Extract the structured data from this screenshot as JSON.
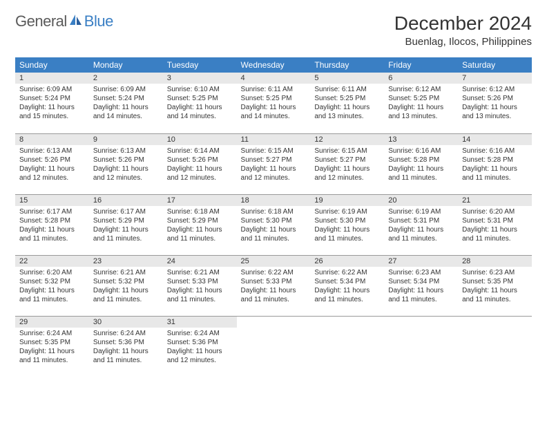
{
  "logo": {
    "general": "General",
    "blue": "Blue"
  },
  "title": "December 2024",
  "location": "Buenlag, Ilocos, Philippines",
  "colors": {
    "header_bg": "#3a7fc4",
    "header_text": "#ffffff",
    "daynum_bg": "#e8e8e8",
    "border": "#999999",
    "text": "#333333",
    "logo_gray": "#5a5a5a",
    "logo_blue": "#3a7fc4"
  },
  "weekdays": [
    "Sunday",
    "Monday",
    "Tuesday",
    "Wednesday",
    "Thursday",
    "Friday",
    "Saturday"
  ],
  "days": [
    {
      "n": "1",
      "sr": "Sunrise: 6:09 AM",
      "ss": "Sunset: 5:24 PM",
      "dl": "Daylight: 11 hours and 15 minutes."
    },
    {
      "n": "2",
      "sr": "Sunrise: 6:09 AM",
      "ss": "Sunset: 5:24 PM",
      "dl": "Daylight: 11 hours and 14 minutes."
    },
    {
      "n": "3",
      "sr": "Sunrise: 6:10 AM",
      "ss": "Sunset: 5:25 PM",
      "dl": "Daylight: 11 hours and 14 minutes."
    },
    {
      "n": "4",
      "sr": "Sunrise: 6:11 AM",
      "ss": "Sunset: 5:25 PM",
      "dl": "Daylight: 11 hours and 14 minutes."
    },
    {
      "n": "5",
      "sr": "Sunrise: 6:11 AM",
      "ss": "Sunset: 5:25 PM",
      "dl": "Daylight: 11 hours and 13 minutes."
    },
    {
      "n": "6",
      "sr": "Sunrise: 6:12 AM",
      "ss": "Sunset: 5:25 PM",
      "dl": "Daylight: 11 hours and 13 minutes."
    },
    {
      "n": "7",
      "sr": "Sunrise: 6:12 AM",
      "ss": "Sunset: 5:26 PM",
      "dl": "Daylight: 11 hours and 13 minutes."
    },
    {
      "n": "8",
      "sr": "Sunrise: 6:13 AM",
      "ss": "Sunset: 5:26 PM",
      "dl": "Daylight: 11 hours and 12 minutes."
    },
    {
      "n": "9",
      "sr": "Sunrise: 6:13 AM",
      "ss": "Sunset: 5:26 PM",
      "dl": "Daylight: 11 hours and 12 minutes."
    },
    {
      "n": "10",
      "sr": "Sunrise: 6:14 AM",
      "ss": "Sunset: 5:26 PM",
      "dl": "Daylight: 11 hours and 12 minutes."
    },
    {
      "n": "11",
      "sr": "Sunrise: 6:15 AM",
      "ss": "Sunset: 5:27 PM",
      "dl": "Daylight: 11 hours and 12 minutes."
    },
    {
      "n": "12",
      "sr": "Sunrise: 6:15 AM",
      "ss": "Sunset: 5:27 PM",
      "dl": "Daylight: 11 hours and 12 minutes."
    },
    {
      "n": "13",
      "sr": "Sunrise: 6:16 AM",
      "ss": "Sunset: 5:28 PM",
      "dl": "Daylight: 11 hours and 11 minutes."
    },
    {
      "n": "14",
      "sr": "Sunrise: 6:16 AM",
      "ss": "Sunset: 5:28 PM",
      "dl": "Daylight: 11 hours and 11 minutes."
    },
    {
      "n": "15",
      "sr": "Sunrise: 6:17 AM",
      "ss": "Sunset: 5:28 PM",
      "dl": "Daylight: 11 hours and 11 minutes."
    },
    {
      "n": "16",
      "sr": "Sunrise: 6:17 AM",
      "ss": "Sunset: 5:29 PM",
      "dl": "Daylight: 11 hours and 11 minutes."
    },
    {
      "n": "17",
      "sr": "Sunrise: 6:18 AM",
      "ss": "Sunset: 5:29 PM",
      "dl": "Daylight: 11 hours and 11 minutes."
    },
    {
      "n": "18",
      "sr": "Sunrise: 6:18 AM",
      "ss": "Sunset: 5:30 PM",
      "dl": "Daylight: 11 hours and 11 minutes."
    },
    {
      "n": "19",
      "sr": "Sunrise: 6:19 AM",
      "ss": "Sunset: 5:30 PM",
      "dl": "Daylight: 11 hours and 11 minutes."
    },
    {
      "n": "20",
      "sr": "Sunrise: 6:19 AM",
      "ss": "Sunset: 5:31 PM",
      "dl": "Daylight: 11 hours and 11 minutes."
    },
    {
      "n": "21",
      "sr": "Sunrise: 6:20 AM",
      "ss": "Sunset: 5:31 PM",
      "dl": "Daylight: 11 hours and 11 minutes."
    },
    {
      "n": "22",
      "sr": "Sunrise: 6:20 AM",
      "ss": "Sunset: 5:32 PM",
      "dl": "Daylight: 11 hours and 11 minutes."
    },
    {
      "n": "23",
      "sr": "Sunrise: 6:21 AM",
      "ss": "Sunset: 5:32 PM",
      "dl": "Daylight: 11 hours and 11 minutes."
    },
    {
      "n": "24",
      "sr": "Sunrise: 6:21 AM",
      "ss": "Sunset: 5:33 PM",
      "dl": "Daylight: 11 hours and 11 minutes."
    },
    {
      "n": "25",
      "sr": "Sunrise: 6:22 AM",
      "ss": "Sunset: 5:33 PM",
      "dl": "Daylight: 11 hours and 11 minutes."
    },
    {
      "n": "26",
      "sr": "Sunrise: 6:22 AM",
      "ss": "Sunset: 5:34 PM",
      "dl": "Daylight: 11 hours and 11 minutes."
    },
    {
      "n": "27",
      "sr": "Sunrise: 6:23 AM",
      "ss": "Sunset: 5:34 PM",
      "dl": "Daylight: 11 hours and 11 minutes."
    },
    {
      "n": "28",
      "sr": "Sunrise: 6:23 AM",
      "ss": "Sunset: 5:35 PM",
      "dl": "Daylight: 11 hours and 11 minutes."
    },
    {
      "n": "29",
      "sr": "Sunrise: 6:24 AM",
      "ss": "Sunset: 5:35 PM",
      "dl": "Daylight: 11 hours and 11 minutes."
    },
    {
      "n": "30",
      "sr": "Sunrise: 6:24 AM",
      "ss": "Sunset: 5:36 PM",
      "dl": "Daylight: 11 hours and 11 minutes."
    },
    {
      "n": "31",
      "sr": "Sunrise: 6:24 AM",
      "ss": "Sunset: 5:36 PM",
      "dl": "Daylight: 11 hours and 12 minutes."
    }
  ]
}
